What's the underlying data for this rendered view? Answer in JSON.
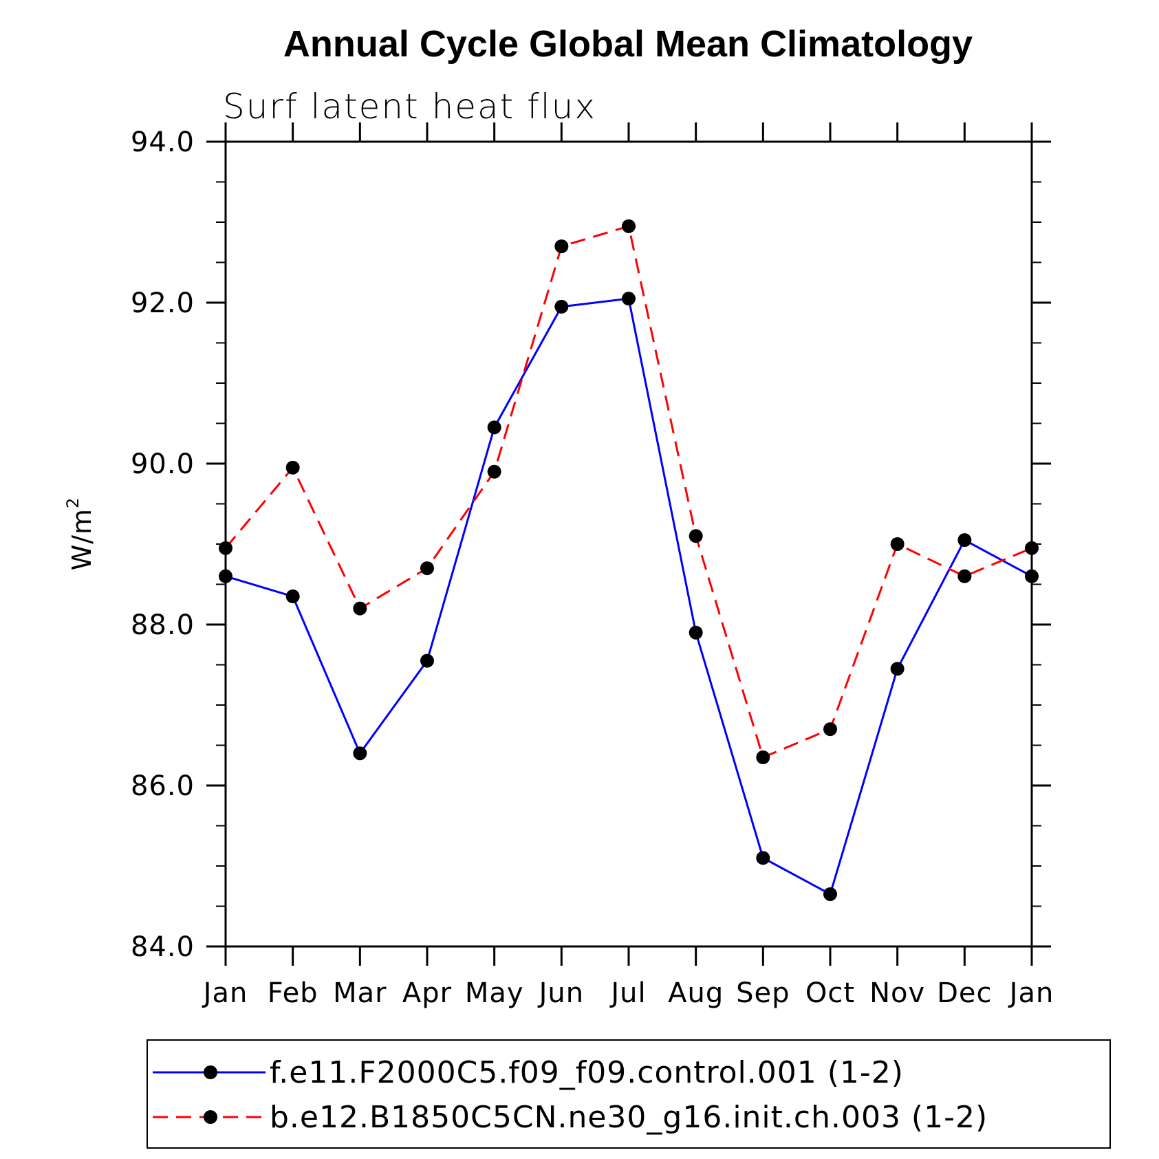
{
  "chart_data": {
    "type": "line",
    "title": "Annual Cycle Global Mean Climatology",
    "subtitle": "Surf latent heat flux",
    "ylabel": "W/m",
    "ylabel_superscript": "2",
    "xlabel": "",
    "ylim": [
      84.0,
      94.0
    ],
    "y_ticks": [
      "84.0",
      "86.0",
      "88.0",
      "90.0",
      "92.0",
      "94.0"
    ],
    "y_tick_values": [
      84,
      86,
      88,
      90,
      92,
      94
    ],
    "categories": [
      "Jan",
      "Feb",
      "Mar",
      "Apr",
      "May",
      "Jun",
      "Jul",
      "Aug",
      "Sep",
      "Oct",
      "Nov",
      "Dec",
      "Jan"
    ],
    "grid": false,
    "legend_position": "bottom",
    "series": [
      {
        "name": "f.e11.F2000C5.f09_f09.control.001 (1-2)",
        "color": "#0000ff",
        "line_style": "solid",
        "marker": "filled-circle",
        "values": [
          88.6,
          88.35,
          86.4,
          87.55,
          90.45,
          91.95,
          92.05,
          87.9,
          85.1,
          84.65,
          87.45,
          89.05,
          88.6
        ]
      },
      {
        "name": "b.e12.B1850C5CN.ne30_g16.init.ch.003 (1-2)",
        "color": "#ff0000",
        "line_style": "dashed",
        "marker": "filled-circle",
        "values": [
          88.95,
          89.95,
          88.2,
          88.7,
          89.9,
          92.7,
          92.95,
          89.1,
          86.35,
          86.7,
          89.0,
          88.6,
          88.95
        ]
      }
    ]
  }
}
